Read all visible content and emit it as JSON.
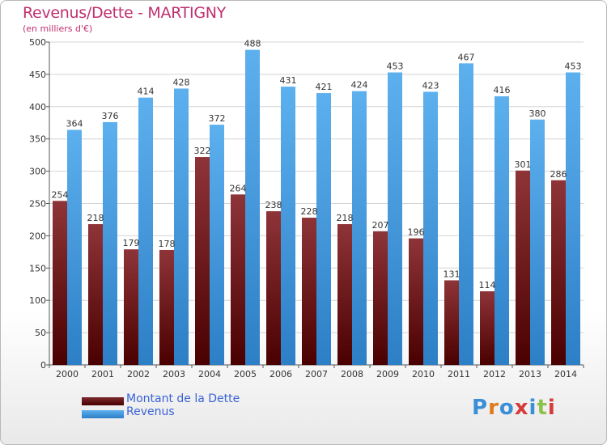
{
  "title": "Revenus/Dette - MARTIGNY",
  "subtitle": "(en milliers d'€)",
  "logo": {
    "text": "Proxiti"
  },
  "colors": {
    "debt_top": "#8e3438",
    "debt_bottom": "#4a0000",
    "revenue_top": "#5db0ee",
    "revenue_bottom": "#2d7fc6",
    "title": "#c03070",
    "legend_text": "#3a63d6"
  },
  "chart_data": {
    "type": "bar",
    "title": "Revenus/Dette - MARTIGNY",
    "subtitle": "(en milliers d'€)",
    "categories": [
      "2000",
      "2001",
      "2002",
      "2003",
      "2004",
      "2005",
      "2006",
      "2007",
      "2008",
      "2009",
      "2010",
      "2011",
      "2012",
      "2013",
      "2014"
    ],
    "series": [
      {
        "name": "Montant de la Dette",
        "values": [
          254,
          218,
          179,
          178,
          322,
          264,
          238,
          228,
          218,
          207,
          196,
          131,
          114,
          301,
          286
        ]
      },
      {
        "name": "Revenus",
        "values": [
          364,
          376,
          414,
          428,
          372,
          488,
          431,
          421,
          424,
          453,
          423,
          467,
          416,
          380,
          453
        ]
      }
    ],
    "ylim": [
      0,
      500
    ],
    "yticks": [
      0,
      50,
      100,
      150,
      200,
      250,
      300,
      350,
      400,
      450,
      500
    ],
    "grid": true,
    "legend_position": "bottom-left"
  }
}
